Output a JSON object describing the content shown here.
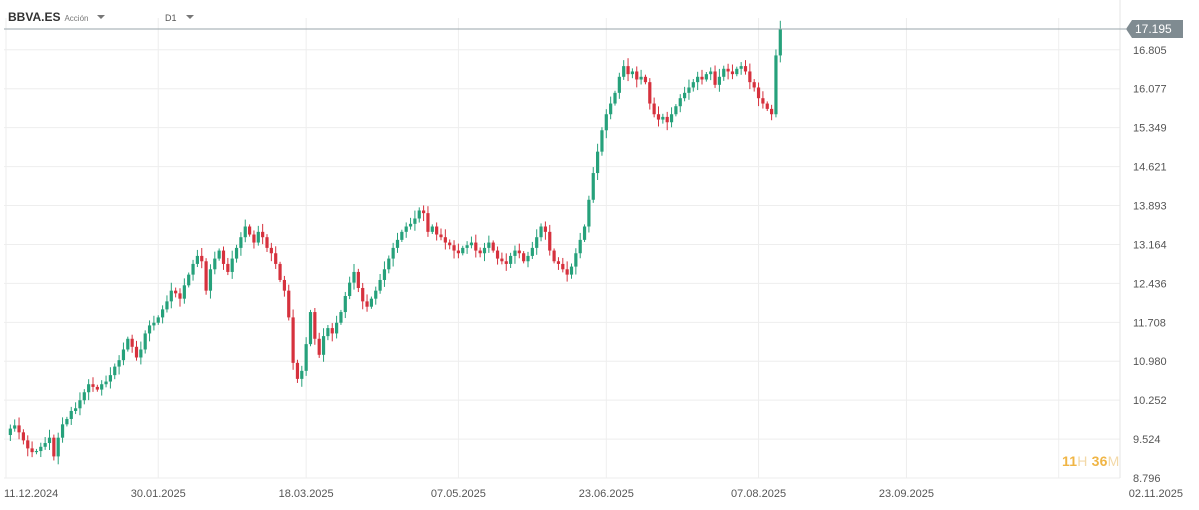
{
  "instrument": {
    "symbol": "BBVA.ES",
    "type": "Acción",
    "timeframe": "D1"
  },
  "countdown": {
    "hours": "11",
    "hours_unit": "H",
    "minutes": "36",
    "minutes_unit": "M"
  },
  "colors": {
    "up": "#26a17b",
    "down": "#d6313d",
    "grid": "#eeeeee",
    "axis_text": "#555555",
    "price_line": "#9aa5ab",
    "price_label_bg": "#7f8b91"
  },
  "chart_data": {
    "type": "candlestick",
    "title": "",
    "xlabel": "",
    "ylabel": "",
    "ylim": [
      8.796,
      17.4
    ],
    "y_ticks": [
      "8.796",
      "9.524",
      "10.252",
      "10.980",
      "11.708",
      "12.436",
      "13.164",
      "13.893",
      "14.621",
      "15.349",
      "16.077",
      "16.805"
    ],
    "x_ticks": [
      "11.12.2024",
      "30.01.2025",
      "18.03.2025",
      "07.05.2025",
      "23.06.2025",
      "07.08.2025",
      "23.09.2025",
      "02.11.2025"
    ],
    "x_tick_index": [
      0,
      35,
      69,
      104,
      138,
      173,
      207,
      242
    ],
    "current_price": 17.195,
    "closes": [
      9.6,
      9.72,
      9.78,
      9.65,
      9.5,
      9.35,
      9.28,
      9.3,
      9.38,
      9.45,
      9.55,
      9.2,
      9.55,
      9.8,
      9.9,
      10.05,
      10.1,
      10.25,
      10.4,
      10.55,
      10.5,
      10.45,
      10.55,
      10.6,
      10.72,
      10.88,
      11.0,
      11.2,
      11.4,
      11.25,
      11.05,
      11.2,
      11.5,
      11.65,
      11.7,
      11.8,
      11.95,
      12.1,
      12.3,
      12.25,
      12.15,
      12.4,
      12.6,
      12.8,
      12.95,
      12.85,
      12.3,
      12.7,
      12.9,
      13.05,
      12.8,
      12.65,
      12.9,
      13.1,
      13.3,
      13.5,
      13.35,
      13.2,
      13.4,
      13.3,
      13.1,
      13.0,
      12.8,
      12.5,
      12.3,
      11.8,
      10.95,
      10.65,
      10.8,
      11.3,
      11.9,
      11.4,
      11.1,
      11.45,
      11.6,
      11.5,
      11.7,
      11.9,
      12.2,
      12.45,
      12.65,
      12.35,
      12.1,
      12.0,
      12.15,
      12.3,
      12.5,
      12.7,
      12.9,
      13.1,
      13.25,
      13.4,
      13.5,
      13.55,
      13.65,
      13.8,
      13.75,
      13.4,
      13.5,
      13.35,
      13.3,
      13.2,
      13.15,
      13.05,
      13.0,
      13.1,
      13.15,
      13.2,
      13.05,
      13.0,
      13.1,
      13.2,
      13.05,
      12.9,
      12.85,
      12.8,
      12.95,
      13.05,
      13.0,
      12.85,
      12.95,
      13.1,
      13.3,
      13.5,
      13.4,
      13.05,
      12.85,
      12.8,
      12.7,
      12.6,
      12.75,
      13.0,
      13.25,
      13.5,
      14.0,
      14.5,
      14.9,
      15.3,
      15.6,
      15.8,
      16.0,
      16.3,
      16.5,
      16.35,
      16.4,
      16.25,
      16.3,
      16.2,
      15.8,
      15.6,
      15.5,
      15.55,
      15.45,
      15.6,
      15.75,
      15.9,
      16.0,
      16.1,
      16.2,
      16.3,
      16.25,
      16.35,
      16.4,
      16.15,
      16.3,
      16.45,
      16.4,
      16.35,
      16.45,
      16.5,
      16.4,
      16.2,
      16.1,
      15.9,
      15.8,
      15.7,
      15.6,
      16.7,
      17.2
    ]
  }
}
